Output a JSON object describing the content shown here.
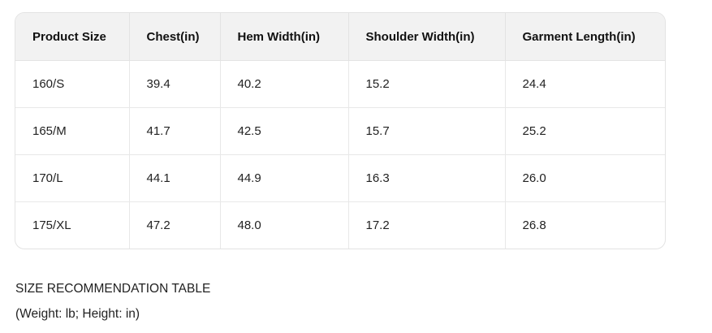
{
  "table": {
    "headers": [
      "Product Size",
      "Chest(in)",
      "Hem Width(in)",
      "Shoulder Width(in)",
      "Garment Length(in)"
    ],
    "rows": [
      [
        "160/S",
        "39.4",
        "40.2",
        "15.2",
        "24.4"
      ],
      [
        "165/M",
        "41.7",
        "42.5",
        "15.7",
        "25.2"
      ],
      [
        "170/L",
        "44.1",
        "44.9",
        "16.3",
        "26.0"
      ],
      [
        "175/XL",
        "47.2",
        "48.0",
        "17.2",
        "26.8"
      ]
    ]
  },
  "caption": {
    "title": "SIZE RECOMMENDATION TABLE",
    "units": "(Weight: lb; Height: in)"
  }
}
